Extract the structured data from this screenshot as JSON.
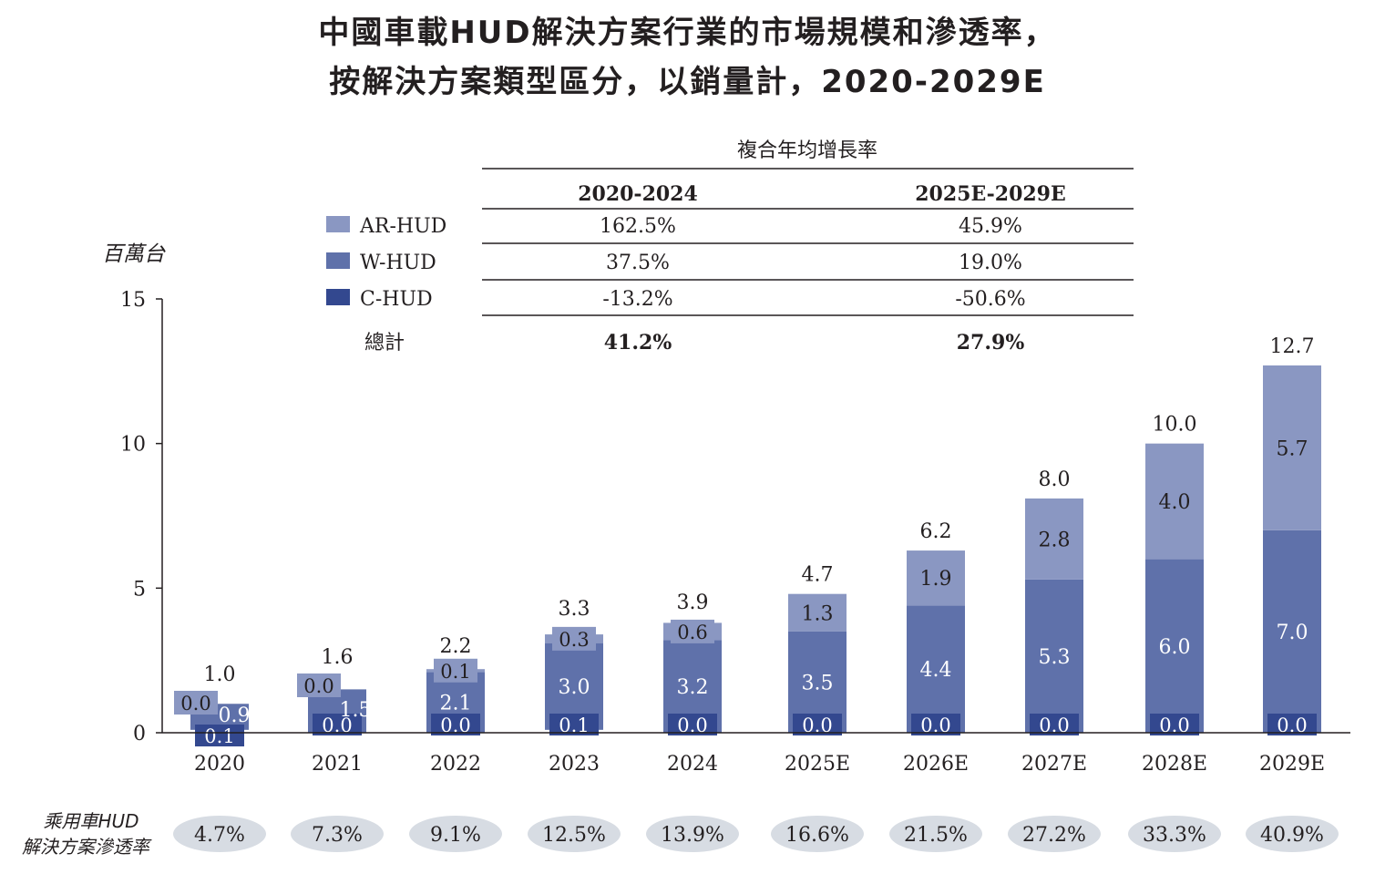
{
  "title_line1": "中國車載HUD解決方案行業的市場規模和滲透率，",
  "title_line2": "按解決方案類型區分，以銷量計，2020-2029E",
  "colors": {
    "ar": "#8a97c2",
    "w": "#5f71aa",
    "c": "#33488f",
    "pill": "#d7dce3",
    "line": "#231f20"
  },
  "cagr_table": {
    "title": "複合年均增長率",
    "columns": [
      "2020-2024",
      "2025E-2029E"
    ],
    "rows": [
      {
        "label": "AR-HUD",
        "series": "ar",
        "values": [
          "162.5%",
          "45.9%"
        ]
      },
      {
        "label": "W-HUD",
        "series": "w",
        "values": [
          "37.5%",
          "19.0%"
        ]
      },
      {
        "label": "C-HUD",
        "series": "c",
        "values": [
          "-13.2%",
          "-50.6%"
        ]
      }
    ],
    "total": {
      "label": "總計",
      "values": [
        "41.2%",
        "27.9%"
      ]
    }
  },
  "penetration": {
    "label_line1": "乘用車HUD",
    "label_line2": "解決方案滲透率",
    "values": [
      "4.7%",
      "7.3%",
      "9.1%",
      "12.5%",
      "13.9%",
      "16.6%",
      "21.5%",
      "27.2%",
      "33.3%",
      "40.9%"
    ]
  },
  "chart_data": {
    "type": "bar",
    "stacked": true,
    "title": "中國車載HUD解決方案行業的市場規模和滲透率，按解決方案類型區分，以銷量計，2020-2029E",
    "ylabel": "百萬台",
    "xlabel": "",
    "ylim": [
      0,
      15
    ],
    "yticks": [
      0,
      5,
      10,
      15
    ],
    "categories": [
      "2020",
      "2021",
      "2022",
      "2023",
      "2024",
      "2025E",
      "2026E",
      "2027E",
      "2028E",
      "2029E"
    ],
    "series": [
      {
        "name": "C-HUD",
        "key": "c",
        "values": [
          0.1,
          0.0,
          0.0,
          0.1,
          0.0,
          0.0,
          0.0,
          0.0,
          0.0,
          0.0
        ],
        "labels": [
          "0.1",
          "0.0",
          "0.0",
          "0.1",
          "0.0",
          "0.0",
          "0.0",
          "0.0",
          "0.0",
          "0.0"
        ]
      },
      {
        "name": "W-HUD",
        "key": "w",
        "values": [
          0.9,
          1.5,
          2.1,
          3.0,
          3.2,
          3.5,
          4.4,
          5.3,
          6.0,
          7.0
        ],
        "labels": [
          "0.9",
          "1.5",
          "2.1",
          "3.0",
          "3.2",
          "3.5",
          "4.4",
          "5.3",
          "6.0",
          "7.0"
        ]
      },
      {
        "name": "AR-HUD",
        "key": "ar",
        "values": [
          0.0,
          0.0,
          0.1,
          0.3,
          0.6,
          1.3,
          1.9,
          2.8,
          4.0,
          5.7
        ],
        "labels": [
          "0.0",
          "0.0",
          "0.1",
          "0.3",
          "0.6",
          "1.3",
          "1.9",
          "2.8",
          "4.0",
          "5.7"
        ]
      }
    ],
    "totals": [
      "1.0",
      "1.6",
      "2.2",
      "3.3",
      "3.9",
      "4.7",
      "6.2",
      "8.0",
      "10.0",
      "12.7"
    ],
    "grid": false,
    "legend": "top-left"
  }
}
